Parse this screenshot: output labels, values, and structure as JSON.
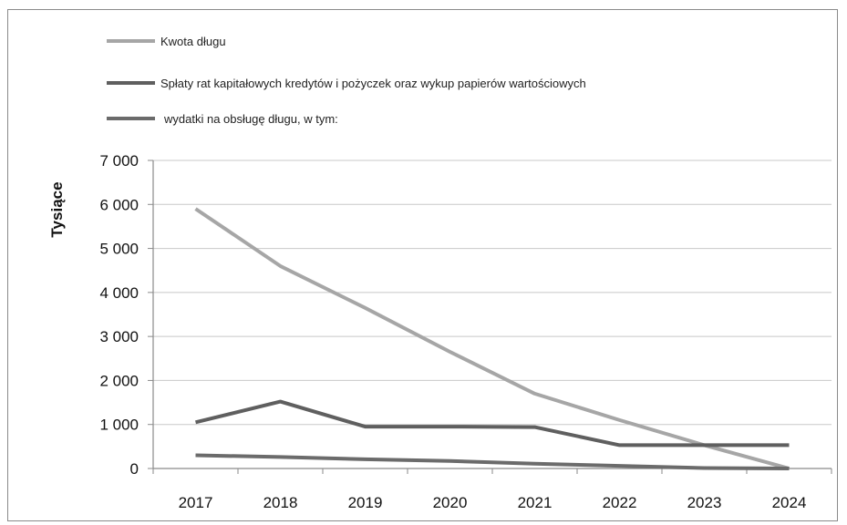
{
  "chart_data": {
    "type": "line",
    "title": "",
    "xlabel": "",
    "ylabel": "Tysiące",
    "ylim": [
      0,
      7000
    ],
    "yticks": [
      0,
      1000,
      2000,
      3000,
      4000,
      5000,
      6000,
      7000
    ],
    "ytick_labels": [
      "0",
      "1 000",
      "2 000",
      "3 000",
      "4 000",
      "5 000",
      "6 000",
      "7 000"
    ],
    "categories": [
      "2017",
      "2018",
      "2019",
      "2020",
      "2021",
      "2022",
      "2023",
      "2024"
    ],
    "grid": "horizontal",
    "legend_position": "top",
    "series": [
      {
        "name": "Kwota długu",
        "color": "#a6a6a6",
        "values": [
          5900,
          4600,
          3650,
          2650,
          1700,
          1100,
          530,
          0
        ]
      },
      {
        "name": "Spłaty rat kapitałowych kredytów i pożyczek oraz wykup papierów wartościowych",
        "color": "#5f5f5f",
        "values": [
          1050,
          1520,
          950,
          950,
          940,
          530,
          530,
          530
        ]
      },
      {
        "name": "wydatki na obsługę długu, w tym:",
        "color": "#6b6b6b",
        "values": [
          300,
          260,
          210,
          170,
          110,
          60,
          10,
          0
        ]
      }
    ]
  }
}
